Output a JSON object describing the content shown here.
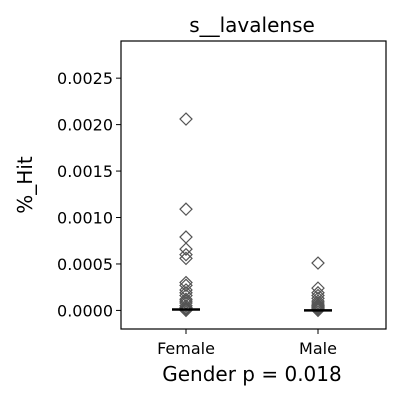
{
  "chart_data": {
    "type": "scatter",
    "title": "s__lavalense",
    "xlabel": "Gender p = 0.018",
    "ylabel": "%_Hit",
    "categories": [
      "Female",
      "Male"
    ],
    "ylim": [
      -0.0002,
      0.0029
    ],
    "yticks": [
      0.0,
      0.0005,
      0.001,
      0.0015,
      0.002,
      0.0025
    ],
    "ytick_labels": [
      "0.0000",
      "0.0005",
      "0.0010",
      "0.0015",
      "0.0020",
      "0.0025"
    ],
    "grid": false,
    "marker": "diamond-open",
    "series": [
      {
        "category": "Female",
        "values": [
          0.00206,
          0.00109,
          0.00079,
          0.00066,
          0.0006,
          0.00056,
          0.0003,
          0.00027,
          0.00022,
          0.00019,
          0.00016,
          0.00012,
          0.0001,
          8e-05,
          5e-05,
          3e-05,
          2e-05,
          1e-05,
          0.0
        ],
        "median": 1e-05
      },
      {
        "category": "Male",
        "values": [
          0.00051,
          0.00024,
          0.00019,
          0.00016,
          0.00013,
          0.0001,
          8e-05,
          6e-05,
          5e-05,
          4e-05,
          3e-05,
          2e-05,
          1e-05,
          0.0
        ],
        "median": 0.0
      }
    ]
  }
}
